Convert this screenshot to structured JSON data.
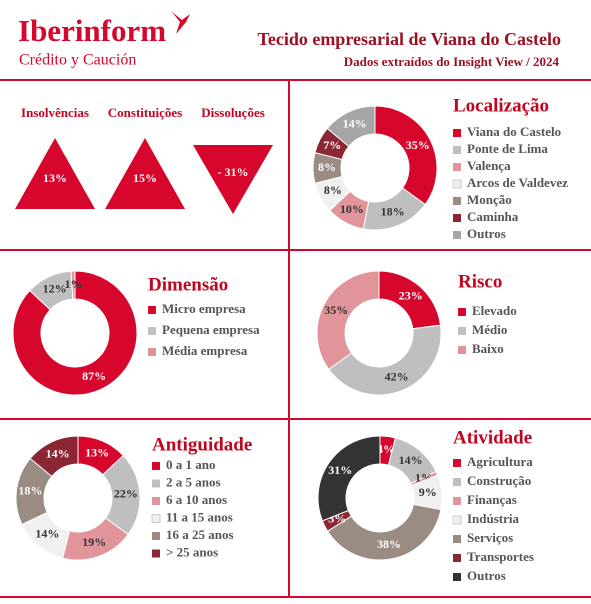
{
  "header": {
    "brand": "Iberinform",
    "brand_sub": "Crédito y Caución",
    "title": "Tecido empresarial de Viana do Castelo",
    "subtitle": "Dados extraídos do Insight View / 2024"
  },
  "indicators": [
    {
      "label": "Insolvências",
      "value": 13,
      "value_label": "13%"
    },
    {
      "label": "Constituições",
      "value": 15,
      "value_label": "15%"
    },
    {
      "label": "Dissoluções",
      "value": -31,
      "value_label": "- 31%"
    }
  ],
  "chart_data": [
    {
      "type": "donut",
      "title": "Localização",
      "categories": [
        "Viana do Castelo",
        "Ponte de Lima",
        "Valença",
        "Arcos de Valdevez",
        "Monção",
        "Caminha",
        "Outros"
      ],
      "values": [
        35,
        18,
        10,
        8,
        8,
        7,
        14
      ],
      "value_labels": [
        "35%",
        "18%",
        "10%",
        "8%",
        "8%",
        "7%",
        "14%"
      ],
      "colors": [
        "#d7062c",
        "#bfbfbf",
        "#e1959b",
        "#f0f0f0",
        "#9a8b83",
        "#8b2633",
        "#a6a6a6"
      ]
    },
    {
      "type": "donut",
      "title": "Dimensão",
      "categories": [
        "Micro empresa",
        "Pequena empresa",
        "Média empresa"
      ],
      "values": [
        87,
        12,
        1
      ],
      "value_labels": [
        "87%",
        "12%",
        "1%"
      ],
      "colors": [
        "#d7062c",
        "#bfbfbf",
        "#e1959b"
      ]
    },
    {
      "type": "donut",
      "title": "Risco",
      "categories": [
        "Elevado",
        "Médio",
        "Baixo"
      ],
      "values": [
        23,
        42,
        35
      ],
      "value_labels": [
        "23%",
        "42%",
        "35%"
      ],
      "colors": [
        "#d7062c",
        "#bfbfbf",
        "#e1959b"
      ]
    },
    {
      "type": "donut",
      "title": "Antiguidade",
      "categories": [
        "0 a 1 ano",
        "2 a 5 anos",
        "6 a 10 anos",
        "11 a 15 anos",
        "16 a 25 anos",
        "> 25 anos"
      ],
      "values": [
        13,
        22,
        19,
        14,
        18,
        14
      ],
      "value_labels": [
        "13%",
        "22%",
        "19%",
        "14%",
        "18%",
        "14%"
      ],
      "colors": [
        "#d7062c",
        "#bfbfbf",
        "#e1959b",
        "#f0f0f0",
        "#9a8b83",
        "#8b2633"
      ]
    },
    {
      "type": "donut",
      "title": "Atividade",
      "categories": [
        "Agricultura",
        "Construção",
        "Finanças",
        "Indústria",
        "Serviços",
        "Transportes",
        "Outros"
      ],
      "values": [
        4,
        14,
        1,
        9,
        38,
        3,
        31
      ],
      "value_labels": [
        "4%",
        "14%",
        "1%",
        "9%",
        "38%",
        "3%",
        "31%"
      ],
      "colors": [
        "#d7062c",
        "#bfbfbf",
        "#e1959b",
        "#f0f0f0",
        "#9a8b83",
        "#8b2633",
        "#333333"
      ]
    }
  ]
}
